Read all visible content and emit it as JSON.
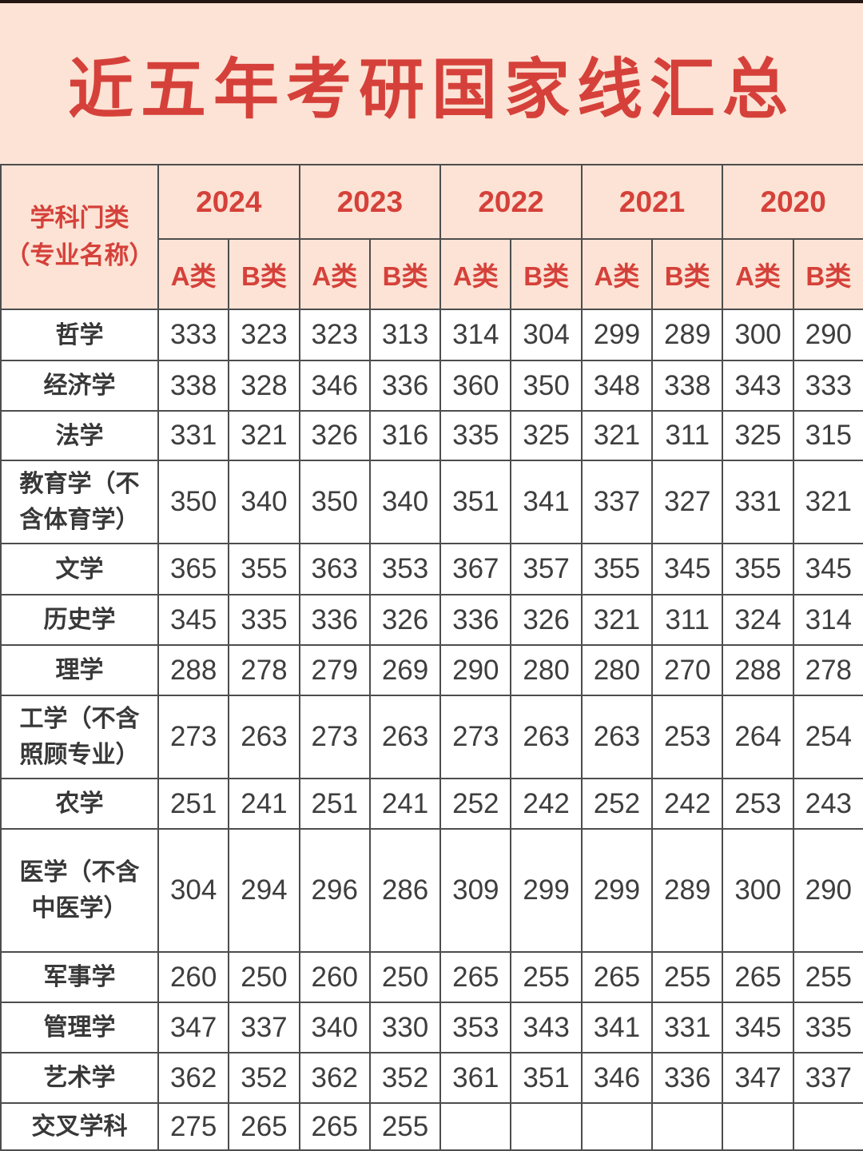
{
  "title": "近五年考研国家线汇总",
  "chart_data": {
    "type": "table",
    "title": "近五年考研国家线汇总",
    "corner_header_line1": "学科门类",
    "corner_header_line2": "（专业名称）",
    "years": [
      "2024",
      "2023",
      "2022",
      "2021",
      "2020"
    ],
    "class_headers": [
      "A类",
      "B类"
    ],
    "columns": [
      "2024 A类",
      "2024 B类",
      "2023 A类",
      "2023 B类",
      "2022 A类",
      "2022 B类",
      "2021 A类",
      "2021 B类",
      "2020 A类",
      "2020 B类"
    ],
    "rows": [
      {
        "label": "哲学",
        "values": [
          "333",
          "323",
          "323",
          "313",
          "314",
          "304",
          "299",
          "289",
          "300",
          "290"
        ]
      },
      {
        "label": "经济学",
        "values": [
          "338",
          "328",
          "346",
          "336",
          "360",
          "350",
          "348",
          "338",
          "343",
          "333"
        ]
      },
      {
        "label": "法学",
        "values": [
          "331",
          "321",
          "326",
          "316",
          "335",
          "325",
          "321",
          "311",
          "325",
          "315"
        ]
      },
      {
        "label": "教育学（不含体育学）",
        "values": [
          "350",
          "340",
          "350",
          "340",
          "351",
          "341",
          "337",
          "327",
          "331",
          "321"
        ]
      },
      {
        "label": "文学",
        "values": [
          "365",
          "355",
          "363",
          "353",
          "367",
          "357",
          "355",
          "345",
          "355",
          "345"
        ]
      },
      {
        "label": "历史学",
        "values": [
          "345",
          "335",
          "336",
          "326",
          "336",
          "326",
          "321",
          "311",
          "324",
          "314"
        ]
      },
      {
        "label": "理学",
        "values": [
          "288",
          "278",
          "279",
          "269",
          "290",
          "280",
          "280",
          "270",
          "288",
          "278"
        ]
      },
      {
        "label": "工学（不含照顾专业）",
        "values": [
          "273",
          "263",
          "273",
          "263",
          "273",
          "263",
          "263",
          "253",
          "264",
          "254"
        ]
      },
      {
        "label": "农学",
        "values": [
          "251",
          "241",
          "251",
          "241",
          "252",
          "242",
          "252",
          "242",
          "253",
          "243"
        ]
      },
      {
        "label": "医学（不含中医学）",
        "values": [
          "304",
          "294",
          "296",
          "286",
          "309",
          "299",
          "299",
          "289",
          "300",
          "290"
        ]
      },
      {
        "label": "军事学",
        "values": [
          "260",
          "250",
          "260",
          "250",
          "265",
          "255",
          "265",
          "255",
          "265",
          "255"
        ]
      },
      {
        "label": "管理学",
        "values": [
          "347",
          "337",
          "340",
          "330",
          "353",
          "343",
          "341",
          "331",
          "345",
          "335"
        ]
      },
      {
        "label": "艺术学",
        "values": [
          "362",
          "352",
          "362",
          "352",
          "361",
          "351",
          "346",
          "336",
          "347",
          "337"
        ]
      },
      {
        "label": "交叉学科",
        "values": [
          "275",
          "265",
          "265",
          "255",
          "",
          "",
          "",
          "",
          "",
          ""
        ]
      }
    ]
  },
  "colors": {
    "page_bg": "#fce3d5",
    "accent_red": "#d5413a",
    "cell_bg": "#ffffff",
    "text_dark": "#3e3e3e",
    "border": "#4d4d4d",
    "top_strip": "#241612"
  }
}
